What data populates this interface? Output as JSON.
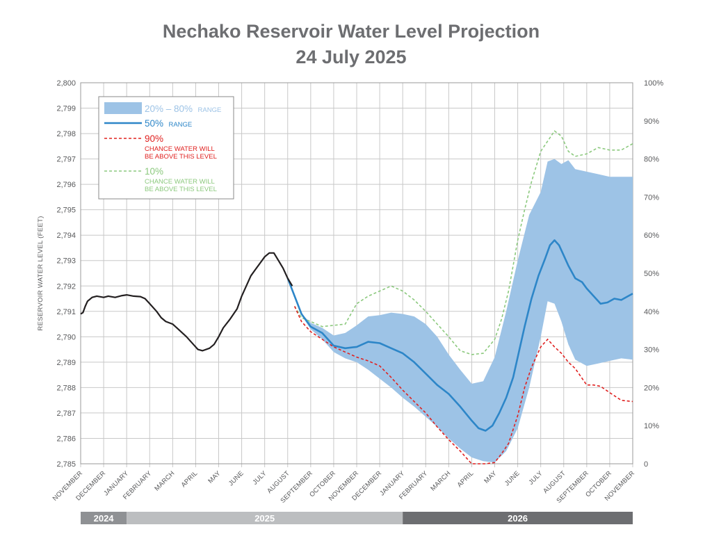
{
  "colors": {
    "band": "#9dc3e6",
    "median": "#2d86c8",
    "historical": "#231f20",
    "p90": "#e0201f",
    "p10": "#8cc97e",
    "grid": "#c8c8c8",
    "axis_text": "#58595b",
    "title": "#6d6e71",
    "year_2024": "#8f9194",
    "year_2025": "#bcbec0",
    "year_2026": "#6d6e71"
  },
  "chart_data": {
    "type": "line",
    "title": "Nechako Reservoir Water Level Projection",
    "subtitle": "24 July 2025",
    "ylabel": "RESERVOIR WATER LEVEL (FEET)",
    "ylim": [
      2785,
      2800
    ],
    "y_ticks": [
      "2,800",
      "2,799",
      "2,798",
      "2,797",
      "2,796",
      "2,795",
      "2,794",
      "2,793",
      "2,792",
      "2,791",
      "2,790",
      "2,789",
      "2,788",
      "2,787",
      "2,786",
      "2,785"
    ],
    "y2_ticks": [
      "100%",
      "90%",
      "80%",
      "70%",
      "60%",
      "50%",
      "40%",
      "30%",
      "20%",
      "10%",
      "0"
    ],
    "x_months": [
      "NOVEMBER",
      "DECEMBER",
      "JANUARY",
      "FEBRUARY",
      "MARCH",
      "APRIL",
      "MAY",
      "JUNE",
      "JULY",
      "AUGUST",
      "SEPTEMBER",
      "OCTOBER",
      "NOVEMBER",
      "DECEMBER",
      "JANUARY",
      "FEBRUARY",
      "MARCH",
      "APRIL",
      "MAY",
      "JUNE",
      "JULY",
      "AUGUST",
      "SEPTEMBER",
      "OCTOBER",
      "NOVEMBER"
    ],
    "years": [
      {
        "label": "2024",
        "start": 0,
        "end": 2
      },
      {
        "label": "2025",
        "start": 2,
        "end": 14
      },
      {
        "label": "2026",
        "start": 14,
        "end": 24
      }
    ],
    "grid": true,
    "legend_position": "top-left",
    "legend": {
      "band": {
        "label": "20% – 80%",
        "suffix": "RANGE"
      },
      "median": {
        "label": "50%",
        "suffix": "RANGE"
      },
      "p90": {
        "label": "90%",
        "line1": "CHANCE WATER WILL",
        "line2": "BE ABOVE THIS LEVEL"
      },
      "p10": {
        "label": "10%",
        "line1": "CHANCE WATER WILL",
        "line2": "BE ABOVE THIS LEVEL"
      }
    },
    "series": [
      {
        "key": "historical",
        "x": [
          0,
          0.1,
          0.2,
          0.3,
          0.5,
          0.7,
          1.0,
          1.2,
          1.5,
          1.8,
          2.0,
          2.3,
          2.6,
          2.8,
          3.0,
          3.3,
          3.5,
          3.7,
          4.0,
          4.3,
          4.6,
          4.9,
          5.1,
          5.3,
          5.6,
          5.8,
          6.0,
          6.2,
          6.5,
          6.8,
          7.0,
          7.2,
          7.4,
          7.6,
          7.8,
          8.0,
          8.2,
          8.4,
          8.6,
          8.8,
          9.0,
          9.2
        ],
        "values": [
          2790.9,
          2790.95,
          2791.2,
          2791.4,
          2791.55,
          2791.6,
          2791.55,
          2791.6,
          2791.55,
          2791.62,
          2791.65,
          2791.6,
          2791.58,
          2791.5,
          2791.3,
          2791.0,
          2790.75,
          2790.6,
          2790.5,
          2790.25,
          2790.0,
          2789.7,
          2789.5,
          2789.45,
          2789.55,
          2789.7,
          2790.0,
          2790.35,
          2790.7,
          2791.1,
          2791.6,
          2792.0,
          2792.4,
          2792.65,
          2792.9,
          2793.15,
          2793.3,
          2793.3,
          2793.0,
          2792.7,
          2792.3,
          2792.0
        ]
      },
      {
        "key": "median",
        "x": [
          9.0,
          9.3,
          9.6,
          10.0,
          10.5,
          11.0,
          11.5,
          12.0,
          12.5,
          13.0,
          13.5,
          14.0,
          14.5,
          15.0,
          15.5,
          16.0,
          16.5,
          17.0,
          17.3,
          17.6,
          17.9,
          18.2,
          18.5,
          18.8,
          19.0,
          19.3,
          19.6,
          19.9,
          20.2,
          20.4,
          20.6,
          20.8,
          21.0,
          21.2,
          21.5,
          21.8,
          22.0,
          22.3,
          22.6,
          22.9,
          23.2,
          23.5,
          23.8,
          24.0
        ],
        "values": [
          2792.3,
          2791.6,
          2790.9,
          2790.4,
          2790.15,
          2789.65,
          2789.55,
          2789.6,
          2789.8,
          2789.75,
          2789.55,
          2789.35,
          2789.0,
          2788.55,
          2788.1,
          2787.75,
          2787.25,
          2786.7,
          2786.4,
          2786.3,
          2786.5,
          2787.0,
          2787.6,
          2788.4,
          2789.2,
          2790.4,
          2791.5,
          2792.4,
          2793.1,
          2793.6,
          2793.8,
          2793.6,
          2793.2,
          2792.8,
          2792.3,
          2792.15,
          2791.9,
          2791.6,
          2791.3,
          2791.35,
          2791.5,
          2791.45,
          2791.6,
          2791.7
        ]
      },
      {
        "key": "band_upper",
        "x": [
          9.0,
          9.3,
          9.6,
          10.0,
          10.5,
          11.0,
          11.5,
          12.0,
          12.5,
          13.0,
          13.5,
          14.0,
          14.5,
          15.0,
          15.5,
          16.0,
          16.5,
          17.0,
          17.5,
          18.0,
          18.5,
          19.0,
          19.5,
          20.0,
          20.3,
          20.6,
          20.9,
          21.2,
          21.5,
          22.0,
          22.5,
          23.0,
          23.5,
          24.0
        ],
        "values": [
          2792.3,
          2791.6,
          2790.9,
          2790.55,
          2790.35,
          2790.05,
          2790.15,
          2790.45,
          2790.8,
          2790.85,
          2790.95,
          2790.9,
          2790.8,
          2790.5,
          2790.0,
          2789.3,
          2788.7,
          2788.15,
          2788.25,
          2789.2,
          2791.0,
          2793.0,
          2794.8,
          2795.7,
          2796.9,
          2797.0,
          2796.8,
          2796.95,
          2796.6,
          2796.5,
          2796.4,
          2796.3,
          2796.3,
          2796.3
        ]
      },
      {
        "key": "band_lower",
        "x": [
          9.0,
          9.3,
          9.6,
          10.0,
          10.5,
          11.0,
          11.5,
          12.0,
          12.5,
          13.0,
          13.5,
          14.0,
          14.5,
          15.0,
          15.5,
          16.0,
          16.5,
          17.0,
          17.5,
          18.0,
          18.5,
          19.0,
          19.5,
          20.0,
          20.3,
          20.6,
          20.9,
          21.2,
          21.5,
          22.0,
          22.5,
          23.0,
          23.5,
          24.0
        ],
        "values": [
          2792.3,
          2791.6,
          2790.85,
          2790.3,
          2789.9,
          2789.4,
          2789.15,
          2789.0,
          2788.7,
          2788.35,
          2788.0,
          2787.6,
          2787.25,
          2786.85,
          2786.45,
          2786.0,
          2785.6,
          2785.25,
          2785.1,
          2785.05,
          2785.5,
          2786.4,
          2788.0,
          2790.0,
          2791.4,
          2791.3,
          2790.6,
          2789.7,
          2789.1,
          2788.85,
          2788.95,
          2789.05,
          2789.15,
          2789.1
        ]
      },
      {
        "key": "p90",
        "x": [
          9.3,
          9.6,
          10.0,
          10.5,
          11.0,
          11.5,
          12.0,
          12.5,
          13.0,
          13.5,
          14.0,
          14.5,
          15.0,
          15.5,
          16.0,
          16.5,
          17.0,
          17.3,
          17.6,
          18.0,
          18.3,
          18.6,
          19.0,
          19.3,
          19.6,
          20.0,
          20.3,
          20.6,
          20.9,
          21.2,
          21.5,
          22.0,
          22.3,
          22.6,
          23.0,
          23.5,
          24.0
        ],
        "values": [
          2791.2,
          2790.6,
          2790.2,
          2789.9,
          2789.6,
          2789.4,
          2789.2,
          2789.05,
          2788.85,
          2788.4,
          2787.9,
          2787.45,
          2787.0,
          2786.45,
          2785.95,
          2785.5,
          2785.0,
          2785.0,
          2785.0,
          2785.05,
          2785.4,
          2785.8,
          2786.9,
          2788.0,
          2788.8,
          2789.6,
          2789.9,
          2789.6,
          2789.35,
          2789.0,
          2788.75,
          2788.1,
          2788.1,
          2788.05,
          2787.8,
          2787.5,
          2787.45
        ]
      },
      {
        "key": "p10",
        "x": [
          9.3,
          9.6,
          10.0,
          10.5,
          11.0,
          11.5,
          12.0,
          12.5,
          13.0,
          13.5,
          14.0,
          14.5,
          15.0,
          15.5,
          16.0,
          16.5,
          17.0,
          17.5,
          18.0,
          18.3,
          18.6,
          19.0,
          19.3,
          19.6,
          20.0,
          20.3,
          20.6,
          20.9,
          21.2,
          21.5,
          22.0,
          22.5,
          23.0,
          23.5,
          24.0
        ],
        "values": [
          2791.2,
          2790.75,
          2790.6,
          2790.4,
          2790.45,
          2790.5,
          2791.3,
          2791.6,
          2791.8,
          2792.0,
          2791.8,
          2791.45,
          2791.0,
          2790.5,
          2790.0,
          2789.45,
          2789.3,
          2789.35,
          2789.9,
          2790.7,
          2791.8,
          2793.8,
          2795.0,
          2796.1,
          2797.3,
          2797.7,
          2798.1,
          2797.9,
          2797.3,
          2797.1,
          2797.2,
          2797.45,
          2797.35,
          2797.35,
          2797.6
        ]
      }
    ]
  }
}
